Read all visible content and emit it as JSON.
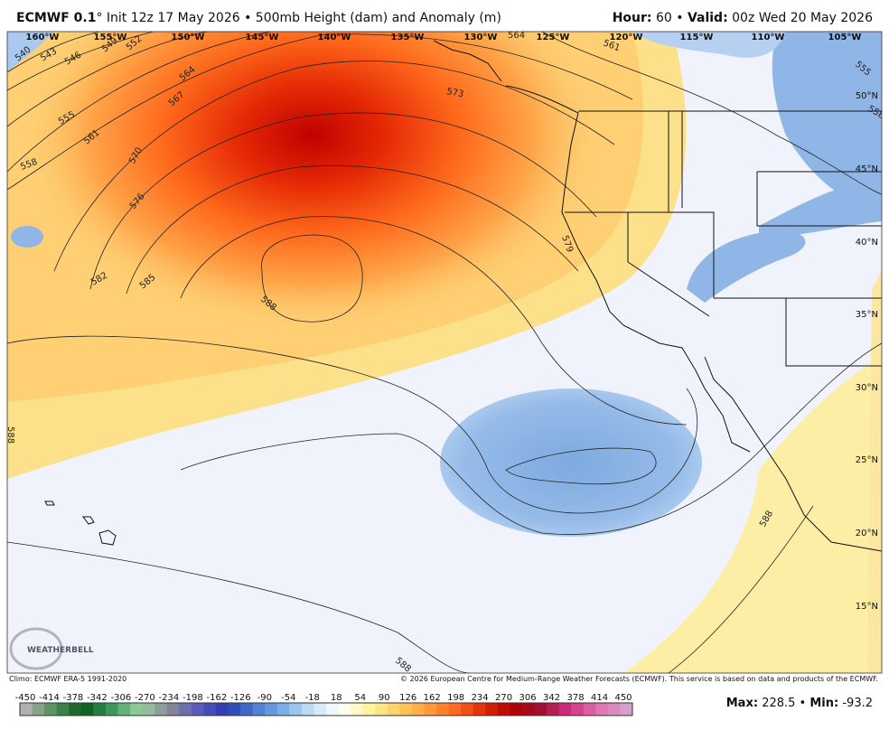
{
  "header": {
    "model": "ECMWF 0.1",
    "description": "° Init 12z 17 May 2026 • 500mb Height (dam) and Anomaly (m)",
    "hour_label": "Hour:",
    "hour": "60 •",
    "valid_label": "Valid:",
    "valid": "00z Wed 20 May 2026"
  },
  "map": {
    "longitudes": [
      "160°W",
      "155°W",
      "150°W",
      "145°W",
      "140°W",
      "135°W",
      "130°W",
      "125°W",
      "120°W",
      "115°W",
      "110°W",
      "105°W"
    ],
    "latitudes": [
      "50°N",
      "45°N",
      "40°N",
      "35°N",
      "30°N",
      "25°N",
      "20°N",
      "15°N"
    ],
    "contours": [
      "540",
      "543",
      "546",
      "549",
      "552",
      "555",
      "558",
      "561",
      "564",
      "567",
      "570",
      "573",
      "576",
      "579",
      "582",
      "585",
      "588",
      "561",
      "564",
      "555",
      "558",
      "588",
      "588",
      "588"
    ],
    "logo": "WEATHERBELL"
  },
  "footer": {
    "climo": "Climo: ECMWF ERA-5 1991-2020",
    "copyright": "© 2026 European Centre for Medium-Range Weather Forecasts (ECMWF). This service is based on data and products of the ECMWF."
  },
  "colorbar": {
    "labels": [
      -450,
      -414,
      -378,
      -342,
      -306,
      -270,
      -234,
      -198,
      -162,
      -126,
      -90,
      -54,
      -18,
      18,
      54,
      90,
      126,
      162,
      198,
      234,
      270,
      306,
      342,
      378,
      414,
      450
    ]
  },
  "stats": {
    "max_label": "Max:",
    "max": 228.5,
    "separator": "•",
    "min_label": "Min:",
    "min": -93.2
  }
}
